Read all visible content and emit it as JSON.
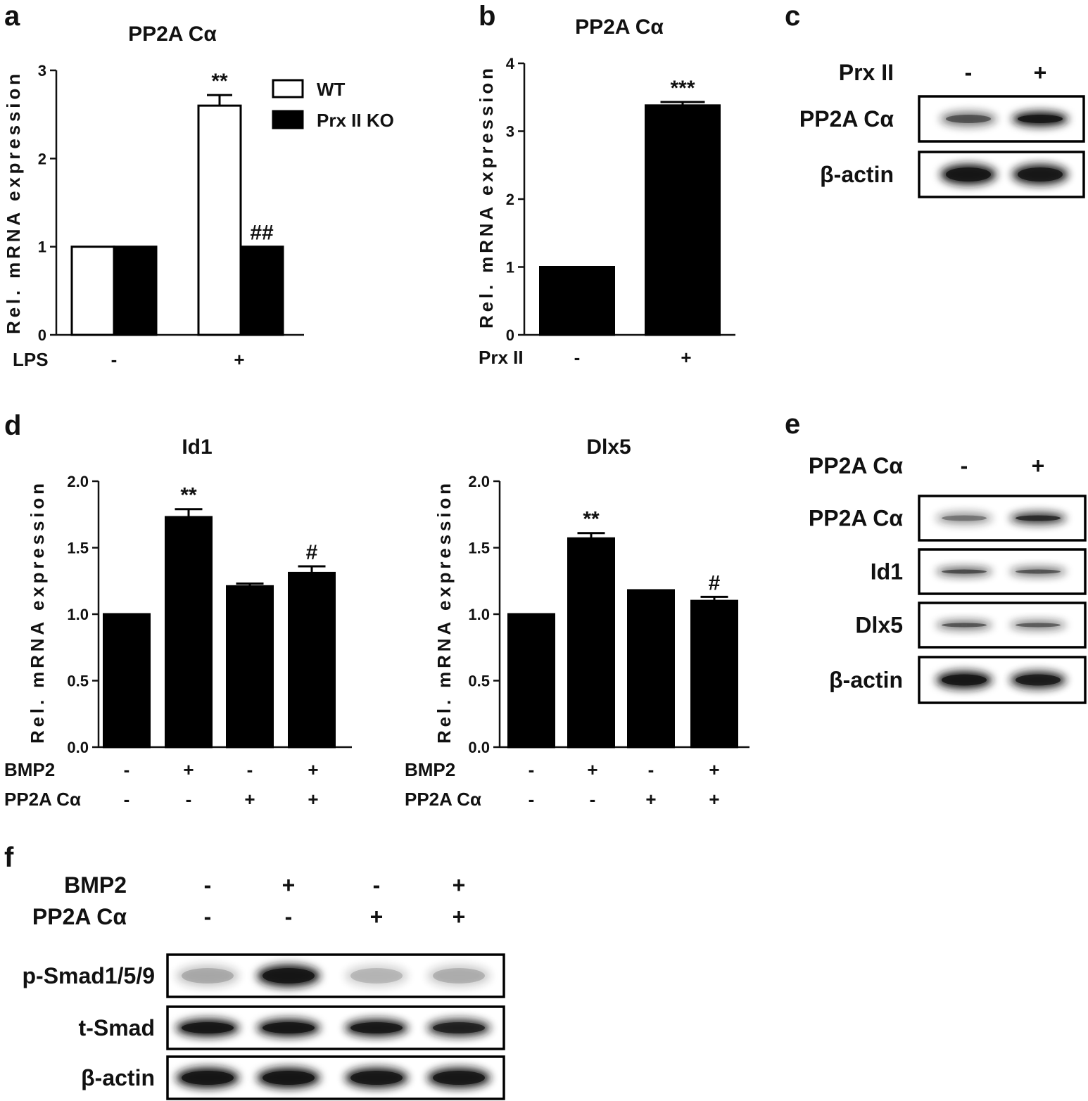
{
  "colors": {
    "wt": "#ffffff",
    "ko": "#000000",
    "bar": "#000000",
    "band": "#151515"
  },
  "chart_data": [
    {
      "panel": "a",
      "type": "bar",
      "title": "PP2A Cα",
      "ylabel": "Rel. mRNA expression",
      "ylim": [
        0,
        3
      ],
      "yticks": [
        "0",
        "1",
        "2",
        "3"
      ],
      "condition_labels": [
        "LPS"
      ],
      "categories": [
        [
          "-"
        ],
        [
          "+"
        ]
      ],
      "legend_position": "top-right",
      "series": [
        {
          "name": "WT",
          "values": [
            1.0,
            2.6
          ],
          "errors": [
            0,
            0.12
          ],
          "fill": "white"
        },
        {
          "name": "Prx II KO",
          "values": [
            1.0,
            1.0
          ],
          "errors": [
            0,
            0
          ],
          "fill": "black"
        }
      ],
      "annotations": [
        {
          "category": 1,
          "series": 0,
          "text": "**"
        },
        {
          "category": 1,
          "series": 1,
          "text": "##"
        }
      ]
    },
    {
      "panel": "b",
      "type": "bar",
      "title": "PP2A Cα",
      "ylabel": "Rel. mRNA expression",
      "ylim": [
        0,
        4
      ],
      "yticks": [
        "0",
        "1",
        "2",
        "3",
        "4"
      ],
      "condition_labels": [
        "Prx II"
      ],
      "categories": [
        [
          "-"
        ],
        [
          "+"
        ]
      ],
      "values": [
        1.0,
        3.38
      ],
      "errors": [
        0,
        0.05
      ],
      "annotations": [
        {
          "index": 1,
          "text": "***"
        }
      ]
    },
    {
      "panel": "d",
      "type": "bar",
      "title": "Id1",
      "ylabel": "Rel. mRNA expression",
      "ylim": [
        0,
        2
      ],
      "yticks": [
        "0.0",
        "0.5",
        "1.0",
        "1.5",
        "2.0"
      ],
      "condition_labels": [
        "BMP2",
        "PP2A Cα"
      ],
      "categories": [
        [
          "-",
          "-"
        ],
        [
          "+",
          "-"
        ],
        [
          "-",
          "+"
        ],
        [
          "+",
          "+"
        ]
      ],
      "values": [
        1.0,
        1.73,
        1.21,
        1.31
      ],
      "errors": [
        0,
        0.06,
        0.02,
        0.05
      ],
      "annotations": [
        {
          "index": 1,
          "text": "**"
        },
        {
          "index": 3,
          "text": "#"
        }
      ]
    },
    {
      "panel": "d",
      "type": "bar",
      "title": "Dlx5",
      "ylabel": "Rel. mRNA expression",
      "ylim": [
        0,
        2
      ],
      "yticks": [
        "0.0",
        "0.5",
        "1.0",
        "1.5",
        "2.0"
      ],
      "condition_labels": [
        "BMP2",
        "PP2A Cα"
      ],
      "categories": [
        [
          "-",
          "-"
        ],
        [
          "+",
          "-"
        ],
        [
          "-",
          "+"
        ],
        [
          "+",
          "+"
        ]
      ],
      "values": [
        1.0,
        1.57,
        1.18,
        1.1
      ],
      "errors": [
        0,
        0.04,
        0,
        0.03
      ],
      "annotations": [
        {
          "index": 1,
          "text": "**"
        },
        {
          "index": 3,
          "text": "#"
        }
      ]
    }
  ],
  "blots": [
    {
      "panel": "c",
      "conditions": [
        {
          "label": "Prx II",
          "signs": [
            "-",
            "+"
          ]
        }
      ],
      "rows": [
        {
          "label": "PP2A Cα",
          "intensities": [
            0.5,
            1.0
          ]
        },
        {
          "label": "β-actin",
          "intensities": [
            1.0,
            0.95
          ]
        }
      ]
    },
    {
      "panel": "e",
      "conditions": [
        {
          "label": "PP2A Cα",
          "signs": [
            "-",
            "+"
          ]
        }
      ],
      "rows": [
        {
          "label": "PP2A Cα",
          "intensities": [
            0.35,
            0.8
          ]
        },
        {
          "label": "Id1",
          "intensities": [
            0.6,
            0.55
          ]
        },
        {
          "label": "Dlx5",
          "intensities": [
            0.55,
            0.5
          ]
        },
        {
          "label": "β-actin",
          "intensities": [
            1.0,
            0.9
          ]
        }
      ]
    },
    {
      "panel": "f",
      "conditions": [
        {
          "label": "BMP2",
          "signs": [
            "-",
            "+",
            "-",
            "+"
          ]
        },
        {
          "label": "PP2A Cα",
          "signs": [
            "-",
            "-",
            "+",
            "+"
          ]
        }
      ],
      "rows": [
        {
          "label": "p-Smad1/5/9",
          "intensities": [
            0.12,
            1.0,
            0.08,
            0.1
          ]
        },
        {
          "label": "t-Smad",
          "intensities": [
            1.0,
            1.0,
            0.95,
            0.85
          ]
        },
        {
          "label": "β-actin",
          "intensities": [
            1.0,
            1.0,
            0.95,
            0.95
          ]
        }
      ]
    }
  ]
}
